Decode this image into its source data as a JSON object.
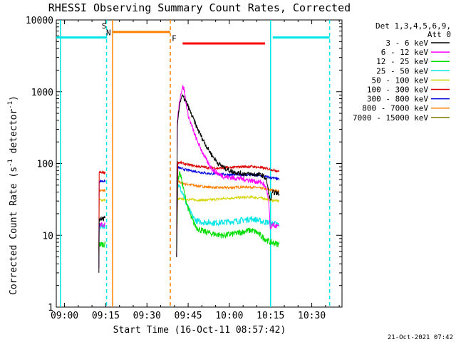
{
  "chart_data": {
    "type": "line",
    "title": "RHESSI Observing Summary Count Rates, Corrected",
    "xlabel": "Start Time (16-Oct-11 08:57:42)",
    "ylabel_main": "Corrected Count Rate (s",
    "ylabel_sup1": "-1",
    "ylabel_mid": " detector",
    "ylabel_sup2": "-1",
    "ylabel_end": ")",
    "x_range_min": [
      -3,
      101
    ],
    "y_scale": "log",
    "y_range": [
      1,
      10000
    ],
    "x_ticks": [
      {
        "t": 0,
        "label": "09:00"
      },
      {
        "t": 15,
        "label": "09:15"
      },
      {
        "t": 30,
        "label": "09:30"
      },
      {
        "t": 45,
        "label": "09:45"
      },
      {
        "t": 60,
        "label": "10:00"
      },
      {
        "t": 75,
        "label": "10:15"
      },
      {
        "t": 90,
        "label": "10:30"
      }
    ],
    "y_ticks": [
      {
        "v": 1,
        "label": "1"
      },
      {
        "v": 10,
        "label": "10"
      },
      {
        "v": 100,
        "label": "100"
      },
      {
        "v": 1000,
        "label": "1000"
      },
      {
        "v": 10000,
        "label": "10000"
      }
    ],
    "legend_title": [
      "Det 1,3,4,5,6,9,",
      "Att 0"
    ],
    "series": [
      {
        "name": "3 - 6 keV",
        "color": "#000000",
        "segments": [
          {
            "t0": 12.5,
            "t1": 14.8,
            "v": 17
          }
        ],
        "flare": [
          [
            40.8,
            5
          ],
          [
            41.0,
            300
          ],
          [
            41.5,
            520
          ],
          [
            42.0,
            700
          ],
          [
            42.5,
            820
          ],
          [
            43.0,
            860
          ],
          [
            44.0,
            750
          ],
          [
            45.0,
            620
          ],
          [
            46.0,
            500
          ],
          [
            47.0,
            410
          ],
          [
            48.0,
            330
          ],
          [
            50.0,
            230
          ],
          [
            52.0,
            165
          ],
          [
            54.0,
            125
          ],
          [
            56.0,
            100
          ],
          [
            58.0,
            88
          ],
          [
            60.0,
            80
          ],
          [
            62.0,
            76
          ],
          [
            64.0,
            73
          ],
          [
            66.0,
            72
          ],
          [
            68.0,
            71
          ],
          [
            70.0,
            70
          ],
          [
            72.0,
            69
          ],
          [
            73.5,
            60
          ],
          [
            74.3,
            40
          ],
          [
            74.9,
            30
          ],
          [
            75.8,
            40
          ],
          [
            78.2,
            38
          ]
        ]
      },
      {
        "name": "6 - 12 keV",
        "color": "#ff00ff",
        "segments": [
          {
            "t0": 12.5,
            "t1": 14.8,
            "v": 14
          }
        ],
        "flare": [
          [
            40.8,
            5
          ],
          [
            41.0,
            350
          ],
          [
            41.5,
            580
          ],
          [
            42.0,
            820
          ],
          [
            42.5,
            1000
          ],
          [
            43.0,
            1180
          ],
          [
            43.5,
            1100
          ],
          [
            44.0,
            800
          ],
          [
            44.5,
            600
          ],
          [
            45.0,
            480
          ],
          [
            46.0,
            360
          ],
          [
            47.0,
            280
          ],
          [
            48.0,
            220
          ],
          [
            49.0,
            180
          ],
          [
            50.0,
            150
          ],
          [
            51.0,
            125
          ],
          [
            52.0,
            105
          ],
          [
            53.0,
            92
          ],
          [
            54.0,
            82
          ],
          [
            56.0,
            72
          ],
          [
            58.0,
            66
          ],
          [
            60.0,
            64
          ],
          [
            62.0,
            63
          ],
          [
            64.0,
            62
          ],
          [
            66.0,
            60
          ],
          [
            68.0,
            58
          ],
          [
            70.0,
            56
          ],
          [
            72.0,
            54
          ],
          [
            73.5,
            45
          ],
          [
            74.3,
            30
          ],
          [
            74.9,
            12
          ],
          [
            75.8,
            14
          ],
          [
            78.2,
            13
          ]
        ]
      },
      {
        "name": "12 - 25 keV",
        "color": "#00dd00",
        "segments": [
          {
            "t0": 12.5,
            "t1": 14.8,
            "v": 7.5
          }
        ],
        "flare": [
          [
            40.8,
            5
          ],
          [
            41.2,
            55
          ],
          [
            41.8,
            75
          ],
          [
            42.3,
            68
          ],
          [
            43.0,
            50
          ],
          [
            44.0,
            33
          ],
          [
            45.0,
            24
          ],
          [
            46.0,
            18
          ],
          [
            47.0,
            15
          ],
          [
            48.0,
            13
          ],
          [
            50.0,
            11.5
          ],
          [
            52.0,
            11
          ],
          [
            54.0,
            10.5
          ],
          [
            56.0,
            10.2
          ],
          [
            58.0,
            10
          ],
          [
            60.0,
            10.3
          ],
          [
            62.0,
            10.6
          ],
          [
            64.0,
            11
          ],
          [
            66.0,
            11.5
          ],
          [
            68.0,
            11.8
          ],
          [
            70.0,
            11
          ],
          [
            72.0,
            9.5
          ],
          [
            74.9,
            8
          ],
          [
            78.2,
            7.5
          ]
        ]
      },
      {
        "name": "25 - 50 keV",
        "color": "#00e5e5",
        "segments": [
          {
            "t0": 12.5,
            "t1": 14.8,
            "v": 13.5
          }
        ],
        "flare": [
          [
            40.8,
            5
          ],
          [
            41.2,
            45
          ],
          [
            42.0,
            48
          ],
          [
            43.0,
            40
          ],
          [
            44.0,
            30
          ],
          [
            45.0,
            24
          ],
          [
            46.0,
            20
          ],
          [
            47.0,
            17.5
          ],
          [
            48.0,
            16
          ],
          [
            50.0,
            15.3
          ],
          [
            54.0,
            15
          ],
          [
            58.0,
            15.2
          ],
          [
            62.0,
            15.8
          ],
          [
            66.0,
            16.5
          ],
          [
            68.0,
            17
          ],
          [
            70.0,
            16.5
          ],
          [
            72.0,
            15.5
          ],
          [
            74.9,
            15
          ],
          [
            78.2,
            14
          ]
        ]
      },
      {
        "name": "50 - 100 keV",
        "color": "#d4d400",
        "segments": [
          {
            "t0": 12.5,
            "t1": 14.8,
            "v": 31
          }
        ],
        "flare": [
          [
            40.8,
            5
          ],
          [
            41.2,
            32
          ],
          [
            44.0,
            32
          ],
          [
            48.0,
            31
          ],
          [
            52.0,
            31
          ],
          [
            56.0,
            32
          ],
          [
            60.0,
            33
          ],
          [
            64.0,
            33.5
          ],
          [
            68.0,
            34
          ],
          [
            72.0,
            33
          ],
          [
            74.9,
            31
          ],
          [
            78.2,
            30
          ]
        ]
      },
      {
        "name": "100 - 300 keV",
        "color": "#dd0000",
        "segments": [
          {
            "t0": 12.5,
            "t1": 14.8,
            "v": 75
          }
        ],
        "flare": [
          [
            40.8,
            5
          ],
          [
            41.2,
            105
          ],
          [
            44.0,
            98
          ],
          [
            48.0,
            92
          ],
          [
            52.0,
            88
          ],
          [
            56.0,
            86
          ],
          [
            60.0,
            88
          ],
          [
            64.0,
            90
          ],
          [
            68.0,
            91
          ],
          [
            72.0,
            87
          ],
          [
            74.9,
            83
          ],
          [
            78.2,
            78
          ]
        ]
      },
      {
        "name": "300 - 800 keV",
        "color": "#0000dd",
        "segments": [
          {
            "t0": 12.5,
            "t1": 14.8,
            "v": 57
          }
        ],
        "flare": [
          [
            40.8,
            5
          ],
          [
            41.2,
            88
          ],
          [
            44.0,
            82
          ],
          [
            48.0,
            77
          ],
          [
            52.0,
            73
          ],
          [
            56.0,
            71
          ],
          [
            60.0,
            70
          ],
          [
            64.0,
            70
          ],
          [
            68.0,
            70
          ],
          [
            72.0,
            67
          ],
          [
            74.9,
            64
          ],
          [
            78.2,
            60
          ]
        ]
      },
      {
        "name": "800 - 7000 keV",
        "color": "#ff8000",
        "segments": [
          {
            "t0": 12.5,
            "t1": 14.8,
            "v": 42
          }
        ],
        "flare": [
          [
            40.8,
            5
          ],
          [
            41.2,
            56
          ],
          [
            44.0,
            52
          ],
          [
            48.0,
            49
          ],
          [
            52.0,
            47
          ],
          [
            56.0,
            46
          ],
          [
            60.0,
            46
          ],
          [
            64.0,
            47
          ],
          [
            68.0,
            47
          ],
          [
            72.0,
            45
          ],
          [
            74.9,
            43
          ],
          [
            78.2,
            41
          ]
        ]
      },
      {
        "name": "7000 - 15000 keV",
        "color": "#808000",
        "segments": [],
        "flare": []
      }
    ],
    "state_bars": [
      {
        "id": "saa",
        "color": "#00e5e5",
        "level": 5700,
        "ranges": [
          [
            -3,
            15.5
          ],
          [
            75.8,
            96.5
          ]
        ]
      },
      {
        "id": "night",
        "color": "#ff8000",
        "level": 6800,
        "ranges": [
          [
            17.5,
            38.5
          ]
        ]
      },
      {
        "id": "flare",
        "color": "#ff0000",
        "level": 4700,
        "ranges": [
          [
            43.0,
            73.0
          ]
        ]
      }
    ],
    "vlines": [
      {
        "t": -1.5,
        "color": "#00e5e5",
        "dash": false
      },
      {
        "t": 15.3,
        "color": "#00e5e5",
        "dash": true
      },
      {
        "t": 17.5,
        "color": "#ff8000",
        "dash": false
      },
      {
        "t": 38.5,
        "color": "#ff8000",
        "dash": true
      },
      {
        "t": 75.0,
        "color": "#00e5e5",
        "dash": false
      },
      {
        "t": 96.5,
        "color": "#00e5e5",
        "dash": true
      }
    ],
    "markers": [
      {
        "text": "S",
        "t": 14.4,
        "v": 7600,
        "color": "#ff8000"
      },
      {
        "text": "N",
        "t": 16.0,
        "v": 6100,
        "color": "#00e5e5"
      },
      {
        "text": "F",
        "t": 39.9,
        "v": 5100,
        "color": "#ff0000"
      }
    ]
  },
  "footer": {
    "timestamp": "21-Oct-2021 07:42"
  }
}
